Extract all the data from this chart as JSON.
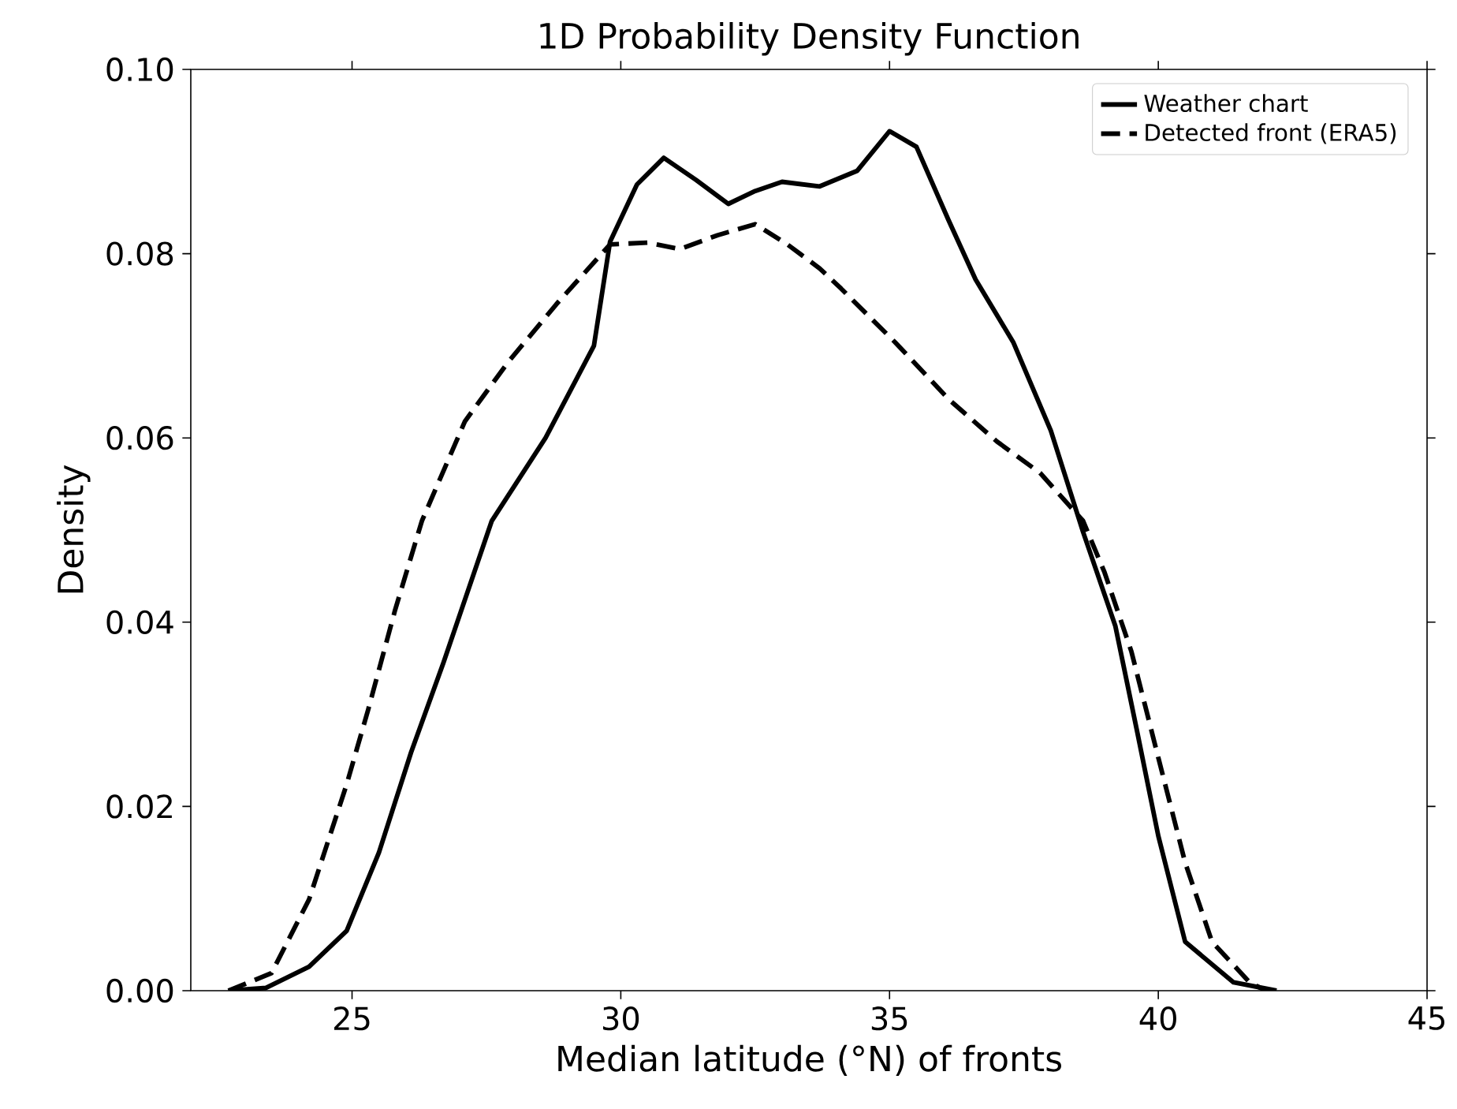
{
  "chart_data": {
    "type": "line",
    "title": "1D Probability Density Function",
    "xlabel": "Median latitude (°N) of fronts",
    "ylabel": "Density",
    "xlim": [
      22,
      45
    ],
    "xticks": [
      25,
      30,
      35,
      40,
      45
    ],
    "ylim": [
      0,
      0.1
    ],
    "yticks": [
      {
        "value": 0,
        "label": "0.00"
      },
      {
        "value": 0.02,
        "label": "0.02"
      },
      {
        "value": 0.04,
        "label": "0.04"
      },
      {
        "value": 0.06,
        "label": "0.06"
      },
      {
        "value": 0.08,
        "label": "0.08"
      },
      {
        "value": 0.1,
        "label": "0.10"
      }
    ],
    "legend": "top right",
    "series": [
      {
        "name": "Weather chart",
        "color": "#000000",
        "line_style": "solid",
        "x": [
          22.7,
          23.4,
          24.2,
          24.9,
          25.5,
          26.1,
          26.7,
          27.6,
          28.6,
          29.5,
          29.8,
          30.3,
          30.8,
          31.4,
          32.0,
          32.5,
          33.0,
          33.7,
          34.4,
          35.0,
          35.5,
          36.1,
          36.6,
          37.3,
          38.0,
          38.6,
          39.2,
          39.6,
          40.0,
          40.5,
          41.4,
          42.2
        ],
        "values": [
          0,
          0.0003,
          0.0026,
          0.0065,
          0.015,
          0.0259,
          0.0356,
          0.051,
          0.06,
          0.07,
          0.0813,
          0.0875,
          0.0904,
          0.088,
          0.0854,
          0.0868,
          0.0878,
          0.0873,
          0.089,
          0.0933,
          0.0916,
          0.0836,
          0.0772,
          0.0704,
          0.0608,
          0.0498,
          0.0396,
          0.0283,
          0.0168,
          0.0053,
          0.0009,
          0
        ]
      },
      {
        "name": "Detected front (ERA5)",
        "color": "#000000",
        "line_style": "dashed",
        "x": [
          22.7,
          23.5,
          24.2,
          24.9,
          25.3,
          25.8,
          26.3,
          27.1,
          27.9,
          28.8,
          29.8,
          30.5,
          31.1,
          31.8,
          32.5,
          33.1,
          33.7,
          34.1,
          35.1,
          36.1,
          37.0,
          37.8,
          38.6,
          39.0,
          39.5,
          40.0,
          40.5,
          41.0,
          41.7,
          42.0
        ],
        "values": [
          0,
          0.0019,
          0.0099,
          0.0224,
          0.0305,
          0.0413,
          0.051,
          0.0618,
          0.0682,
          0.0745,
          0.081,
          0.0812,
          0.0805,
          0.082,
          0.0832,
          0.081,
          0.0784,
          0.0762,
          0.0704,
          0.0642,
          0.0596,
          0.0562,
          0.051,
          0.0454,
          0.0368,
          0.0253,
          0.0139,
          0.0053,
          0.0009,
          0
        ]
      }
    ]
  }
}
